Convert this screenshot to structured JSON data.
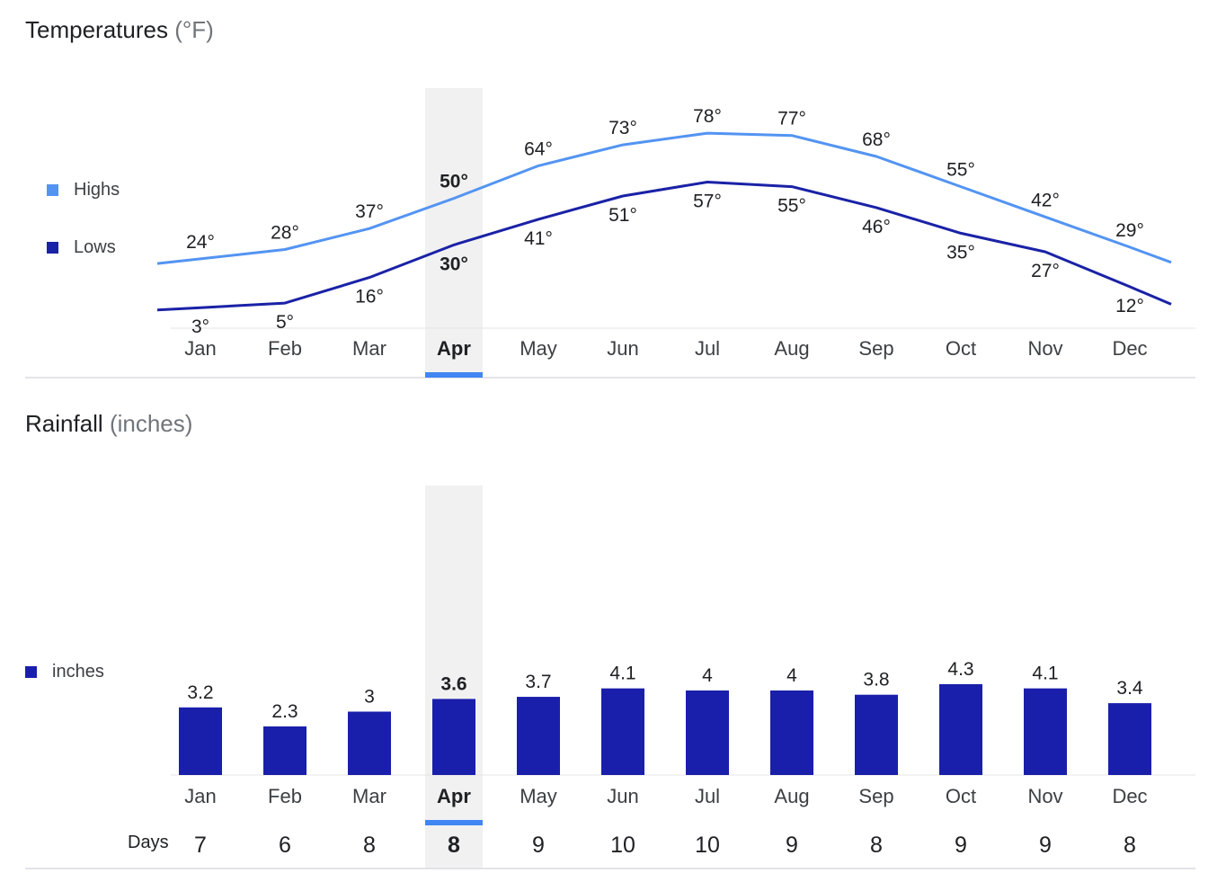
{
  "temperatures": {
    "title": "Temperatures",
    "unit": "(°F)",
    "legend": [
      {
        "label": "Highs",
        "color": "#5394f2"
      },
      {
        "label": "Lows",
        "color": "#1a22a6"
      }
    ]
  },
  "rainfall": {
    "title": "Rainfall",
    "unit": "(inches)",
    "legend": [
      {
        "label": "inches",
        "color": "#1a1fab"
      }
    ],
    "days_label": "Days"
  },
  "selected_month": "Apr",
  "colors": {
    "highs": "#5394f2",
    "lows": "#1a22a6",
    "bars": "#1a1fab",
    "highlight_bg": "#f1f1f1",
    "highlight_bar": "#4285f4",
    "axis": "#e5e5e5"
  },
  "chart_data": [
    {
      "type": "line",
      "title": "Temperatures (°F)",
      "categories": [
        "Jan",
        "Feb",
        "Mar",
        "Apr",
        "May",
        "Jun",
        "Jul",
        "Aug",
        "Sep",
        "Oct",
        "Nov",
        "Dec"
      ],
      "series": [
        {
          "name": "Highs",
          "values": [
            24,
            28,
            37,
            50,
            64,
            73,
            78,
            77,
            68,
            55,
            42,
            29
          ],
          "labels": [
            "24°",
            "28°",
            "37°",
            "50°",
            "64°",
            "73°",
            "78°",
            "77°",
            "68°",
            "55°",
            "42°",
            "29°"
          ]
        },
        {
          "name": "Lows",
          "values": [
            3,
            5,
            16,
            30,
            41,
            51,
            57,
            55,
            46,
            35,
            27,
            12
          ],
          "labels": [
            "3°",
            "5°",
            "16°",
            "30°",
            "41°",
            "51°",
            "57°",
            "55°",
            "46°",
            "35°",
            "27°",
            "12°"
          ]
        }
      ],
      "xlabel": "",
      "ylabel": "",
      "ylim": [
        0,
        85
      ]
    },
    {
      "type": "bar",
      "title": "Rainfall (inches)",
      "categories": [
        "Jan",
        "Feb",
        "Mar",
        "Apr",
        "May",
        "Jun",
        "Jul",
        "Aug",
        "Sep",
        "Oct",
        "Nov",
        "Dec"
      ],
      "series": [
        {
          "name": "inches",
          "values": [
            3.2,
            2.3,
            3,
            3.6,
            3.7,
            4.1,
            4,
            4,
            3.8,
            4.3,
            4.1,
            3.4
          ],
          "labels": [
            "3.2",
            "2.3",
            "3",
            "3.6",
            "3.7",
            "4.1",
            "4",
            "4",
            "3.8",
            "4.3",
            "4.1",
            "3.4"
          ]
        }
      ],
      "days_label": "Days",
      "days": [
        "7",
        "6",
        "8",
        "8",
        "9",
        "10",
        "10",
        "9",
        "8",
        "9",
        "9",
        "8"
      ],
      "xlabel": "",
      "ylabel": "",
      "ylim": [
        0,
        4.5
      ]
    }
  ]
}
